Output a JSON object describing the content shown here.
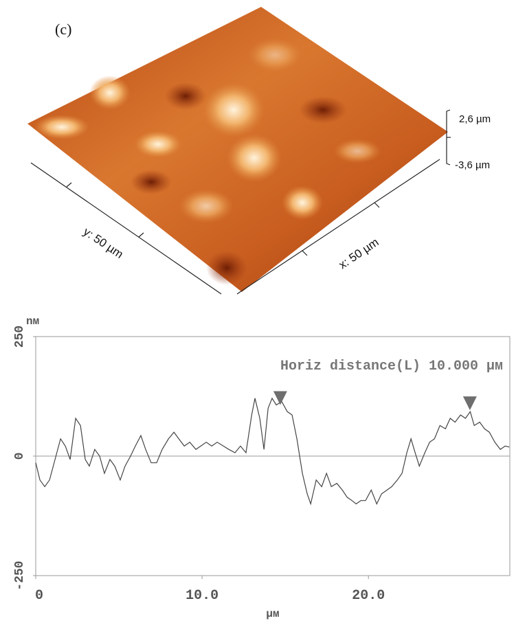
{
  "figure_label": "(c)",
  "surface": {
    "z_labels": [
      "2,6 µm",
      "-3,6 µm"
    ],
    "y_axis_label": "y: 50 µm",
    "x_axis_label": "x: 50 µm"
  },
  "chart_data": {
    "type": "line",
    "y_unit_label": "nм",
    "x_unit_label": "µм",
    "annotation": "Horiz distance(L) 10.000 µм",
    "color": "#444444",
    "x": [
      0,
      0.25,
      0.54,
      0.83,
      1.16,
      1.49,
      1.78,
      2.07,
      2.4,
      2.69,
      2.98,
      3.22,
      3.55,
      3.84,
      4.13,
      4.46,
      4.75,
      5.08,
      5.37,
      5.7,
      5.99,
      6.32,
      6.61,
      6.94,
      7.27,
      7.6,
      7.98,
      8.31,
      8.6,
      8.93,
      9.26,
      9.63,
      9.92,
      10.25,
      10.58,
      10.91,
      11.28,
      11.61,
      11.98,
      12.31,
      12.64,
      12.98,
      13.18,
      13.47,
      13.72,
      13.97,
      14.21,
      14.46,
      14.79,
      15.12,
      15.41,
      15.7,
      16.03,
      16.32,
      16.53,
      16.86,
      17.19,
      17.48,
      17.77,
      18.1,
      18.43,
      18.72,
      19.01,
      19.26,
      19.55,
      19.83,
      20.17,
      20.5,
      20.79,
      21.12,
      21.4,
      21.74,
      22.02,
      22.31,
      22.56,
      22.81,
      23.06,
      23.39,
      23.68,
      23.97,
      24.3,
      24.63,
      24.92,
      25.21,
      25.54,
      25.83,
      26.12,
      26.36,
      26.69,
      26.98,
      27.27,
      27.6,
      27.93,
      28.22,
      28.47
    ],
    "values": [
      -14,
      -50,
      -64,
      -50,
      -7,
      36,
      21,
      -7,
      79,
      64,
      -7,
      -21,
      14,
      0,
      -36,
      -7,
      -21,
      -50,
      -21,
      0,
      21,
      43,
      14,
      -14,
      -14,
      14,
      36,
      50,
      36,
      21,
      29,
      14,
      21,
      29,
      21,
      29,
      21,
      14,
      7,
      21,
      7,
      86,
      121,
      79,
      14,
      100,
      121,
      107,
      114,
      93,
      86,
      36,
      -36,
      -79,
      -100,
      -50,
      -64,
      -36,
      -64,
      -57,
      -71,
      -86,
      -93,
      -100,
      -93,
      -93,
      -71,
      -100,
      -79,
      -71,
      -64,
      -50,
      -36,
      7,
      36,
      7,
      -21,
      7,
      29,
      36,
      64,
      57,
      79,
      71,
      86,
      79,
      93,
      64,
      71,
      57,
      50,
      29,
      14,
      21,
      19
    ],
    "markers": {
      "x": [
        14.7,
        26.1
      ],
      "y": [
        107,
        96
      ],
      "color": "#6e6e6e"
    },
    "xlim": [
      0,
      28.5
    ],
    "ylim": [
      -250,
      250
    ],
    "xticks": [
      0,
      {
        "value": 10,
        "label": "10.0"
      },
      {
        "value": 20,
        "label": "20.0"
      }
    ],
    "yticks": [
      -250,
      0,
      250
    ],
    "zero_line": true
  }
}
